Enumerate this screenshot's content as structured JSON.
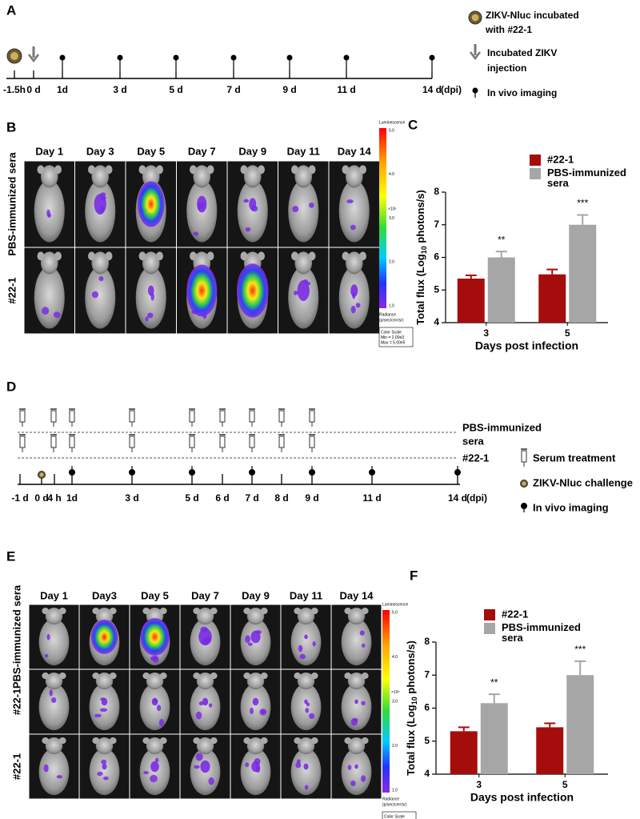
{
  "figure": {
    "panel_labels": [
      "A",
      "B",
      "C",
      "D",
      "E",
      "F"
    ],
    "timeline_a": {
      "ticks": [
        "-1.5h",
        "0 d",
        "1d",
        "3 d",
        "5 d",
        "7 d",
        "9 d",
        "11 d",
        "14 d"
      ],
      "unit": "(dpi)",
      "legend_incubated": [
        "ZIKV-Nluc incubated",
        "with #22-1"
      ],
      "legend_injection": [
        "Incubated  ZIKV",
        "injection"
      ],
      "legend_imaging": "In vivo imaging"
    },
    "imaging_b": {
      "days": [
        "Day 1",
        "Day 3",
        "Day 5",
        "Day 7",
        "Day  9",
        "Day 11",
        "Day 14"
      ],
      "rows": [
        "PBS-immunized sera",
        "#22-1"
      ]
    },
    "colorbar_b": {
      "title": "Luminescence",
      "ticks": [
        "5.0",
        "4.0",
        "3.0",
        "2.0",
        "1.0"
      ],
      "exponent": "×10⁵",
      "radiance": "Radiance",
      "units": "(p/sec/cm²/sr)",
      "scale": [
        "Color Scale",
        "Min = 2.00e3",
        "Max = 5.00e5"
      ]
    },
    "timeline_d": {
      "rows": [
        "PBS-immunized",
        "sera",
        "#22-1"
      ],
      "ticks": [
        "-1 d",
        "0 d",
        "4 h",
        "1d",
        "3 d",
        "5 d",
        "6 d",
        "7 d",
        "8 d",
        "9 d",
        "11 d",
        "14 d"
      ],
      "unit": "(dpi)",
      "legend": [
        "Serum treatment",
        "ZIKV-Nluc challenge",
        "In vivo imaging"
      ]
    },
    "imaging_e": {
      "days": [
        "Day 1",
        "Day3",
        "Day 5",
        "Day 7",
        "Day  9",
        "Day 11",
        "Day 14"
      ],
      "rows": [
        "PBS-immunized sera",
        "#22-1",
        "#22-1"
      ]
    },
    "colorbar_e": {
      "title": "Luminescence",
      "ticks": [
        "5.0",
        "4.0",
        "3.0",
        "2.0",
        "1.0"
      ],
      "exponent": "×10⁵",
      "radiance": "Radiance",
      "units": "(p/sec/cm²/sr)",
      "scale": [
        "Color Scale",
        "Min = 2.00e3",
        "Max = 5.00e5"
      ]
    }
  },
  "chart_data": [
    {
      "type": "bar",
      "xlabel": "Days post infection",
      "ylabel": [
        "Total flux (Log",
        "10",
        " photons/s)"
      ],
      "categories": [
        "3",
        "5"
      ],
      "series": [
        {
          "name": "#22-1",
          "color": "#a50d0d",
          "values": [
            5.35,
            5.48
          ],
          "errors": [
            0.1,
            0.15
          ]
        },
        {
          "name": "PBS-immunized sera",
          "color": "#a6a6a6",
          "values": [
            6.0,
            7.0
          ],
          "errors": [
            0.18,
            0.3
          ]
        }
      ],
      "annotations": [
        "**",
        "***"
      ],
      "ylim": [
        4,
        8
      ],
      "yticks": [
        4,
        5,
        6,
        7,
        8
      ]
    },
    {
      "type": "bar",
      "xlabel": "Days post infection",
      "ylabel": [
        "Total flux (Log",
        "10",
        " photons/s)"
      ],
      "categories": [
        "3",
        "5"
      ],
      "series": [
        {
          "name": "#22-1",
          "color": "#a50d0d",
          "values": [
            5.3,
            5.42
          ],
          "errors": [
            0.12,
            0.12
          ]
        },
        {
          "name": "PBS-immunized sera",
          "color": "#a6a6a6",
          "values": [
            6.15,
            7.0
          ],
          "errors": [
            0.27,
            0.42
          ]
        }
      ],
      "annotations": [
        "**",
        "***"
      ],
      "ylim": [
        4,
        8
      ],
      "yticks": [
        4,
        5,
        6,
        7,
        8
      ]
    }
  ]
}
